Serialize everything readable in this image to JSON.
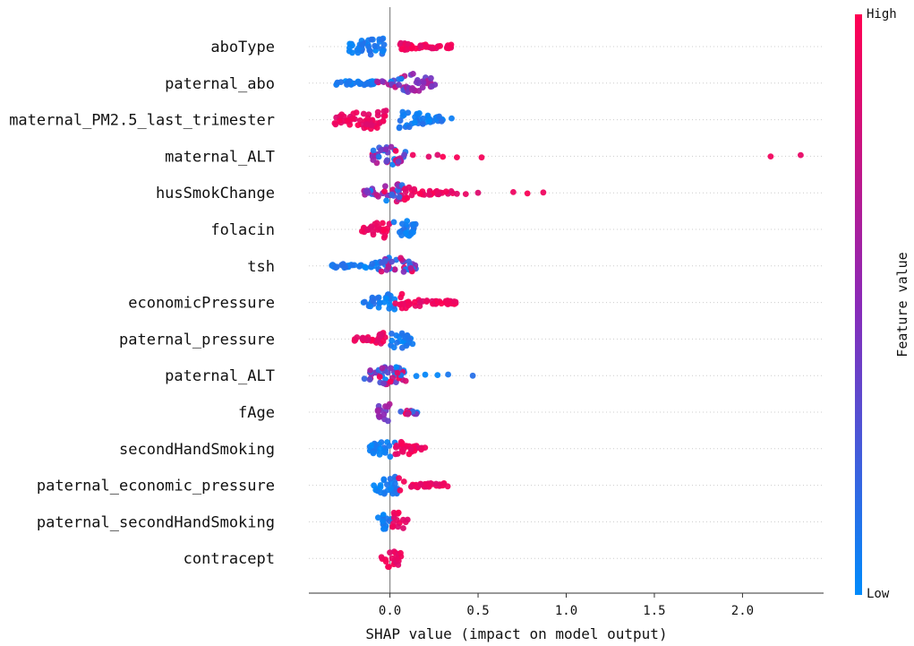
{
  "chart_data": {
    "type": "scatter",
    "subtype": "shap_beeswarm",
    "title": "",
    "xlabel": "SHAP value (impact on model output)",
    "xlim": [
      -0.46,
      2.46
    ],
    "xticks": [
      0.0,
      0.5,
      1.0,
      1.5,
      2.0
    ],
    "xtick_labels": [
      "0.0",
      "0.5",
      "1.0",
      "1.5",
      "2.0"
    ],
    "grid": false,
    "colorbar": {
      "title": "Feature value",
      "high_label": "High",
      "low_label": "Low",
      "high_color": "#ff0052",
      "mid_color": "#8a2ab8",
      "low_color": "#008bfb"
    },
    "features": [
      {
        "name": "aboType",
        "min": -0.23,
        "max": 0.36,
        "core": [
          -0.18,
          0.0
        ],
        "segments": [
          {
            "from": -0.23,
            "to": -0.02,
            "color": "low",
            "density": 1.0
          },
          {
            "from": 0.05,
            "to": 0.36,
            "color": "high",
            "density": 0.8
          }
        ],
        "outliers": []
      },
      {
        "name": "paternal_abo",
        "min": -0.33,
        "max": 0.26,
        "core": [
          0.08,
          0.2
        ],
        "segments": [
          {
            "from": -0.33,
            "to": -0.08,
            "color": "low",
            "density": 0.8
          },
          {
            "from": -0.08,
            "to": 0.1,
            "color": "mix",
            "density": 0.7
          },
          {
            "from": 0.1,
            "to": 0.26,
            "color": "mid",
            "density": 0.9
          }
        ],
        "outliers": []
      },
      {
        "name": "maternal_PM2.5_last_trimester",
        "min": -0.32,
        "max": 0.35,
        "core": [
          -0.2,
          0.12
        ],
        "segments": [
          {
            "from": -0.32,
            "to": -0.02,
            "color": "high",
            "density": 1.0
          },
          {
            "from": 0.05,
            "to": 0.3,
            "color": "low",
            "density": 0.9
          }
        ],
        "outliers": [
          {
            "x": 0.35,
            "color": "low"
          }
        ]
      },
      {
        "name": "maternal_ALT",
        "min": -0.1,
        "max": 2.33,
        "core": [
          -0.08,
          0.05
        ],
        "segments": [
          {
            "from": -0.1,
            "to": 0.1,
            "color": "mix",
            "density": 1.0
          }
        ],
        "outliers": [
          {
            "x": 0.13,
            "color": "high"
          },
          {
            "x": 0.22,
            "color": "high"
          },
          {
            "x": 0.27,
            "color": "high"
          },
          {
            "x": 0.3,
            "color": "high"
          },
          {
            "x": 0.38,
            "color": "high"
          },
          {
            "x": 0.52,
            "color": "high"
          },
          {
            "x": 2.16,
            "color": "high"
          },
          {
            "x": 2.33,
            "color": "high"
          }
        ]
      },
      {
        "name": "husSmokChange",
        "min": -0.15,
        "max": 0.88,
        "core": [
          -0.05,
          0.08
        ],
        "segments": [
          {
            "from": -0.15,
            "to": 0.08,
            "color": "mix",
            "density": 0.9
          },
          {
            "from": 0.08,
            "to": 0.36,
            "color": "high",
            "density": 0.7
          }
        ],
        "outliers": [
          {
            "x": 0.38,
            "color": "high"
          },
          {
            "x": 0.43,
            "color": "high"
          },
          {
            "x": 0.5,
            "color": "high"
          },
          {
            "x": 0.7,
            "color": "high"
          },
          {
            "x": 0.78,
            "color": "high"
          },
          {
            "x": 0.87,
            "color": "high"
          }
        ]
      },
      {
        "name": "folacin",
        "min": -0.17,
        "max": 0.15,
        "core": [
          -0.05,
          0.12
        ],
        "segments": [
          {
            "from": -0.17,
            "to": 0.0,
            "color": "high",
            "density": 0.9
          },
          {
            "from": 0.02,
            "to": 0.15,
            "color": "low",
            "density": 1.0
          }
        ],
        "outliers": []
      },
      {
        "name": "tsh",
        "min": -0.33,
        "max": 0.15,
        "core": [
          -0.02,
          0.1
        ],
        "segments": [
          {
            "from": -0.33,
            "to": -0.05,
            "color": "low",
            "density": 0.7
          },
          {
            "from": -0.05,
            "to": 0.15,
            "color": "mix",
            "density": 1.0
          }
        ],
        "outliers": []
      },
      {
        "name": "economicPressure",
        "min": -0.15,
        "max": 0.38,
        "core": [
          -0.05,
          0.1
        ],
        "segments": [
          {
            "from": -0.15,
            "to": 0.03,
            "color": "low",
            "density": 0.9
          },
          {
            "from": 0.03,
            "to": 0.38,
            "color": "high",
            "density": 0.8
          }
        ],
        "outliers": []
      },
      {
        "name": "paternal_pressure",
        "min": -0.22,
        "max": 0.13,
        "core": [
          -0.02,
          0.1
        ],
        "segments": [
          {
            "from": -0.22,
            "to": -0.02,
            "color": "high",
            "density": 0.9
          },
          {
            "from": 0.0,
            "to": 0.13,
            "color": "low",
            "density": 1.0
          }
        ],
        "outliers": []
      },
      {
        "name": "paternal_ALT",
        "min": -0.15,
        "max": 0.48,
        "core": [
          -0.07,
          0.08
        ],
        "segments": [
          {
            "from": -0.15,
            "to": 0.1,
            "color": "mix",
            "density": 1.0
          }
        ],
        "outliers": [
          {
            "x": 0.15,
            "color": "low"
          },
          {
            "x": 0.2,
            "color": "low"
          },
          {
            "x": 0.27,
            "color": "low"
          },
          {
            "x": 0.33,
            "color": "low"
          },
          {
            "x": 0.47,
            "color": "low"
          }
        ]
      },
      {
        "name": "fAge",
        "min": -0.07,
        "max": 0.16,
        "core": [
          -0.05,
          0.0
        ],
        "segments": [
          {
            "from": -0.07,
            "to": 0.0,
            "color": "mid",
            "density": 1.2
          },
          {
            "from": 0.05,
            "to": 0.16,
            "color": "mix",
            "density": 0.8
          }
        ],
        "outliers": []
      },
      {
        "name": "secondHandSmoking",
        "min": -0.12,
        "max": 0.2,
        "core": [
          -0.05,
          0.08
        ],
        "segments": [
          {
            "from": -0.12,
            "to": 0.03,
            "color": "low",
            "density": 1.0
          },
          {
            "from": 0.03,
            "to": 0.2,
            "color": "high",
            "density": 1.0
          }
        ],
        "outliers": []
      },
      {
        "name": "paternal_economic_pressure",
        "min": -0.1,
        "max": 0.33,
        "core": [
          -0.05,
          0.05
        ],
        "segments": [
          {
            "from": -0.1,
            "to": 0.05,
            "color": "low",
            "density": 1.0
          },
          {
            "from": 0.05,
            "to": 0.33,
            "color": "high",
            "density": 0.7
          }
        ],
        "outliers": []
      },
      {
        "name": "paternal_secondHandSmoking",
        "min": -0.07,
        "max": 0.1,
        "core": [
          -0.03,
          0.08
        ],
        "segments": [
          {
            "from": -0.07,
            "to": 0.01,
            "color": "low",
            "density": 1.0
          },
          {
            "from": 0.01,
            "to": 0.1,
            "color": "high",
            "density": 1.0
          }
        ],
        "outliers": []
      },
      {
        "name": "contracept",
        "min": -0.05,
        "max": 0.07,
        "core": [
          -0.03,
          0.04
        ],
        "segments": [
          {
            "from": -0.05,
            "to": 0.07,
            "color": "high",
            "density": 1.0
          }
        ],
        "outliers": []
      }
    ]
  }
}
